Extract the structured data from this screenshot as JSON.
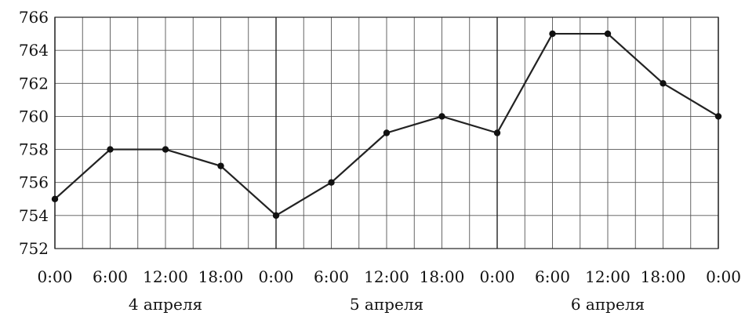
{
  "chart_data": {
    "type": "line",
    "title": "",
    "xlabel": "",
    "ylabel": "",
    "ylim": [
      752,
      766
    ],
    "y_ticks": [
      752,
      754,
      756,
      758,
      760,
      762,
      764,
      766
    ],
    "x_tick_labels": [
      "0:00",
      "6:00",
      "12:00",
      "18:00",
      "0:00",
      "6:00",
      "12:00",
      "18:00",
      "0:00",
      "6:00",
      "12:00",
      "18:00",
      "0:00"
    ],
    "day_labels": [
      "4 апреля",
      "5 апреля",
      "6 апреля"
    ],
    "grid": true,
    "series": [
      {
        "values": [
          755,
          758,
          758,
          757,
          754,
          756,
          759,
          760,
          759,
          765,
          765,
          762,
          760
        ]
      }
    ]
  }
}
